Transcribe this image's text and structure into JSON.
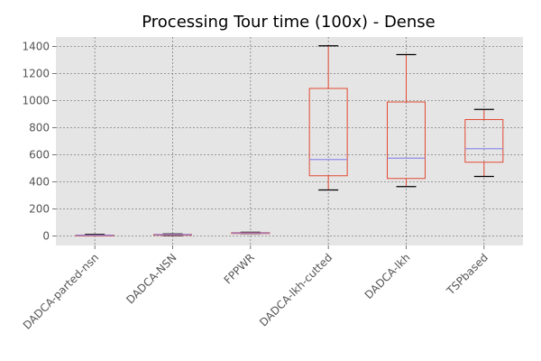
{
  "chart_data": {
    "type": "box",
    "title": "Processing Tour time (100x) - Dense",
    "xlabel": "",
    "ylabel": "",
    "ylim": [
      -70,
      1470
    ],
    "yticks": [
      0,
      200,
      400,
      600,
      800,
      1000,
      1200,
      1400
    ],
    "ytick_labels": [
      "0",
      "200",
      "400",
      "600",
      "800",
      "1000",
      "1200",
      "1400"
    ],
    "grid": true,
    "background": "#e5e5e5",
    "box_color": "#e24a33",
    "median_color": "#8e8ee8",
    "cap_color": "#000000",
    "categories": [
      "DADCA-parted-nsn",
      "DADCA-NSN",
      "FPPWR",
      "DADCA-lkh-cutted",
      "DADCA-lkh",
      "TSPbased"
    ],
    "boxes": [
      {
        "whislo": 2,
        "q1": 3,
        "med": 5,
        "q3": 7,
        "whishi": 12
      },
      {
        "whislo": 3,
        "q1": 8,
        "med": 10,
        "q3": 12,
        "whishi": 15
      },
      {
        "whislo": 18,
        "q1": 20,
        "med": 22,
        "q3": 25,
        "whishi": 28
      },
      {
        "whislo": 340,
        "q1": 445,
        "med": 565,
        "q3": 1090,
        "whishi": 1405
      },
      {
        "whislo": 365,
        "q1": 425,
        "med": 575,
        "q3": 990,
        "whishi": 1340
      },
      {
        "whislo": 440,
        "q1": 545,
        "med": 645,
        "q3": 860,
        "whishi": 935
      }
    ]
  }
}
